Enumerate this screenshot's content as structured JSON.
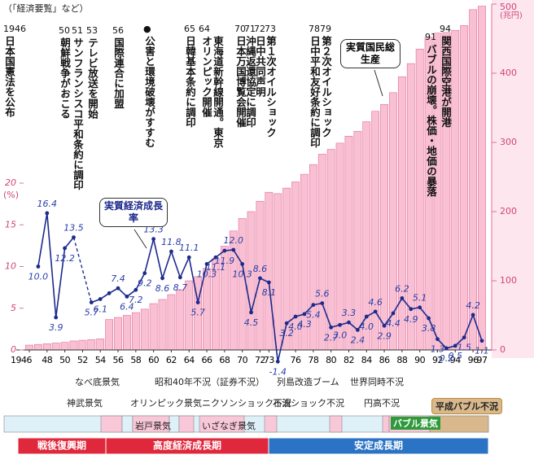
{
  "source": "（「経済要覧」など）",
  "events": [
    {
      "year": "1946",
      "text": "日本国憲法を公布"
    },
    {
      "year": "50",
      "text": "朝鮮戦争がおこる"
    },
    {
      "year": "51",
      "text": "サンフランシスコ平和条約に調印"
    },
    {
      "year": "53",
      "text": "テレビ放送を開始"
    },
    {
      "year": "56",
      "text": "国際連合に加盟"
    },
    {
      "year": "●",
      "text": "公害と環境破壊がすすむ"
    },
    {
      "year": "64",
      "text": "東海道新幹線開通。東京オリンピック開催"
    },
    {
      "year": "65",
      "text": "日韓基本条約に調印"
    },
    {
      "year": "70",
      "text": "日本万国博覧会開催"
    },
    {
      "year": "71",
      "text": "沖縄返還協定に調印"
    },
    {
      "year": "72",
      "text": "日中共同声明"
    },
    {
      "year": "73",
      "text": "第１次オイルショック"
    },
    {
      "year": "78",
      "text": "日中平和友好条約に調印"
    },
    {
      "year": "79",
      "text": "第２次オイルショック"
    },
    {
      "year": "91",
      "text": "バブルの崩壊。株価・地価の暴落"
    },
    {
      "year": "94",
      "text": "関西国際空港が開港"
    }
  ],
  "chart_data": {
    "type": "bar",
    "x": [
      1946,
      1947,
      1948,
      1949,
      1950,
      1951,
      1952,
      1953,
      1954,
      1955,
      1956,
      1957,
      1958,
      1959,
      1960,
      1961,
      1962,
      1963,
      1964,
      1965,
      1966,
      1967,
      1968,
      1969,
      1970,
      1971,
      1972,
      1973,
      1974,
      1975,
      1976,
      1977,
      1978,
      1979,
      1980,
      1981,
      1982,
      1983,
      1984,
      1985,
      1986,
      1987,
      1988,
      1989,
      1990,
      1991,
      1992,
      1993,
      1994,
      1995,
      1996,
      1997
    ],
    "xlim": [
      1946,
      1997
    ],
    "xticks": [
      1946,
      {
        "value": 1948,
        "label": "48"
      },
      {
        "value": 1950,
        "label": "50"
      },
      {
        "value": 1952,
        "label": "52"
      },
      {
        "value": 1954,
        "label": "54"
      },
      {
        "value": 1956,
        "label": "56"
      },
      {
        "value": 1958,
        "label": "58"
      },
      {
        "value": 1960,
        "label": "60"
      },
      {
        "value": 1962,
        "label": "62"
      },
      {
        "value": 1964,
        "label": "64"
      },
      {
        "value": 1966,
        "label": "66"
      },
      {
        "value": 1968,
        "label": "68"
      },
      {
        "value": 1970,
        "label": "70"
      },
      {
        "value": 1972,
        "label": "72"
      },
      {
        "value": 1973,
        "label": "73"
      },
      {
        "value": 1976,
        "label": "76"
      },
      {
        "value": 1978,
        "label": "78"
      },
      {
        "value": 1980,
        "label": "80"
      },
      {
        "value": 1982,
        "label": "82"
      },
      {
        "value": 1984,
        "label": "84"
      },
      {
        "value": 1986,
        "label": "86"
      },
      {
        "value": 1988,
        "label": "88"
      },
      {
        "value": 1990,
        "label": "90"
      },
      {
        "value": 1992,
        "label": "92"
      },
      {
        "value": 1994,
        "label": "94"
      },
      {
        "value": 1996,
        "label": "96"
      },
      {
        "value": 1997,
        "label": "97"
      }
    ],
    "ylabel": "(%)",
    "ylim": [
      0,
      20
    ],
    "yticks": [
      0,
      5,
      10,
      15,
      20
    ],
    "y2label": "(兆円)",
    "y2lim": [
      0,
      500
    ],
    "y2ticks": [
      0,
      100,
      200,
      300,
      400,
      500
    ],
    "series": [
      {
        "name": "実質国民総生産",
        "type": "bar",
        "axis": "y2",
        "color": "#f9bfd2",
        "values": [
          7,
          8,
          9,
          10,
          11,
          13,
          14,
          15,
          16,
          44,
          47,
          50,
          54,
          59,
          67,
          73,
          80,
          87,
          100,
          106,
          118,
          132,
          150,
          172,
          190,
          200,
          215,
          228,
          226,
          234,
          243,
          254,
          268,
          283,
          290,
          299,
          309,
          316,
          330,
          345,
          355,
          372,
          395,
          414,
          435,
          452,
          458,
          459,
          462,
          469,
          492,
          497
        ]
      },
      {
        "name": "実質経済成長率",
        "type": "line",
        "color": "#1c2a8c",
        "values": [
          null,
          10.0,
          16.4,
          3.9,
          12.2,
          13.5,
          null,
          5.7,
          6.1,
          6.8,
          7.4,
          6.4,
          7.2,
          9.2,
          13.3,
          8.6,
          11.8,
          8.7,
          11.1,
          5.7,
          10.3,
          11.1,
          11.9,
          12.0,
          10.3,
          4.5,
          8.6,
          8.1,
          -1.4,
          3.2,
          4.0,
          4.3,
          5.4,
          5.6,
          2.7,
          3.0,
          3.3,
          2.4,
          4.0,
          4.6,
          2.9,
          4.4,
          6.2,
          4.9,
          5.1,
          3.8,
          1.3,
          0.2,
          0.5,
          1.5,
          4.2,
          1.1
        ],
        "value_labels": [
          null,
          "10.0",
          "16.4",
          "3.9",
          "12.2",
          "13.5",
          null,
          "5.7",
          "6.1",
          null,
          "7.4",
          "6.4",
          "7.2",
          "9.2",
          "13.3",
          "8.6",
          "11.8",
          "8.7",
          "11.1",
          "5.7",
          "10.3",
          "11.1",
          "11.9",
          "12.0",
          "10.3",
          "4.5",
          "8.6",
          "8.1",
          "-1.4",
          "3.2",
          "4.0",
          "4.3",
          "5.4",
          "5.6",
          "2.7",
          "3.0",
          "3.3",
          "2.4",
          "4.0",
          "4.6",
          "2.9",
          "4.4",
          "6.2",
          "4.9",
          "5.1",
          "3.8",
          "1.3",
          "0.2",
          "0.5",
          "1.5",
          "4.2",
          "1.1"
        ]
      }
    ]
  },
  "timeline": {
    "booms": [
      "なべ底景気",
      "神武景気",
      "昭和40年不況（証券不況）",
      "オリンピック景気",
      "岩戸景気",
      "ニクソンショック不況",
      "いざなぎ景気",
      "列島改造ブーム",
      "石油ショック不況",
      "世界同時不況",
      "円高不況",
      "バブル景気",
      "平成バブル不況"
    ],
    "periods": [
      "戦後復興期",
      "高度経済成長期",
      "安定成長期"
    ]
  }
}
